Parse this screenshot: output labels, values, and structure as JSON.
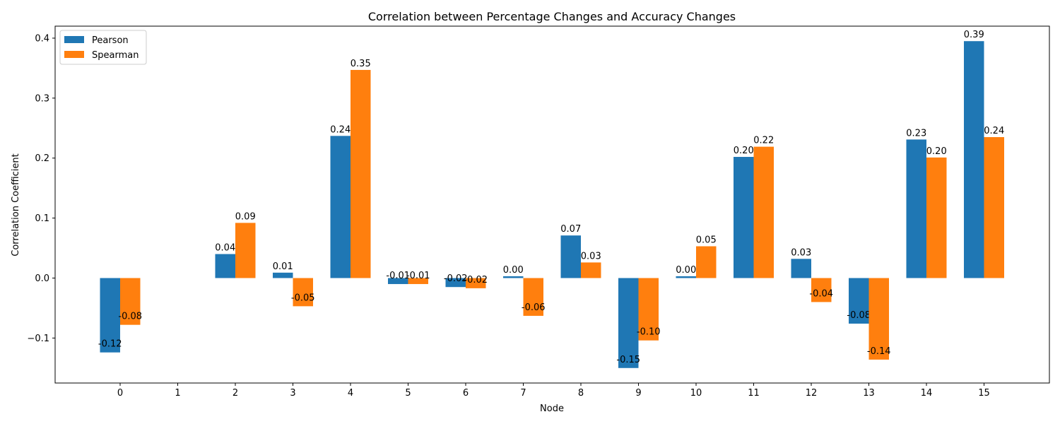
{
  "chart_data": {
    "type": "bar",
    "title": "Correlation between Percentage Changes and Accuracy Changes",
    "xlabel": "Node",
    "ylabel": "Correlation Coefficient",
    "categories": [
      "0",
      "1",
      "2",
      "3",
      "4",
      "5",
      "6",
      "7",
      "8",
      "9",
      "10",
      "11",
      "12",
      "13",
      "14",
      "15"
    ],
    "series": [
      {
        "name": "Pearson",
        "color": "#1f77b4",
        "values": [
          -0.124,
          null,
          0.04,
          0.009,
          0.237,
          -0.01,
          -0.015,
          0.003,
          0.071,
          -0.15,
          0.003,
          0.202,
          0.032,
          -0.076,
          0.231,
          0.395
        ],
        "labels": [
          "-0.12",
          "",
          "0.04",
          "0.01",
          "0.24",
          "-0.01",
          "-0.02",
          "0.00",
          "0.07",
          "-0.15",
          "0.00",
          "0.20",
          "0.03",
          "-0.08",
          "0.23",
          "0.39"
        ]
      },
      {
        "name": "Spearman",
        "color": "#ff7f0e",
        "values": [
          -0.078,
          null,
          0.092,
          -0.047,
          0.347,
          -0.01,
          -0.017,
          -0.063,
          0.026,
          -0.104,
          0.053,
          0.219,
          -0.04,
          -0.136,
          0.201,
          0.235
        ],
        "labels": [
          "-0.08",
          "",
          "0.09",
          "-0.05",
          "0.35",
          "-0.01",
          "-0.02",
          "-0.06",
          "0.03",
          "-0.10",
          "0.05",
          "0.22",
          "-0.04",
          "-0.14",
          "0.20",
          "0.24"
        ]
      }
    ],
    "yticks": [
      -0.1,
      0.0,
      0.1,
      0.2,
      0.3,
      0.4
    ],
    "ytick_labels": [
      "−0.1",
      "0.0",
      "0.1",
      "0.2",
      "0.3",
      "0.4"
    ],
    "ylim": [
      -0.175,
      0.42
    ],
    "grid": false,
    "legend_position": "top-left"
  }
}
